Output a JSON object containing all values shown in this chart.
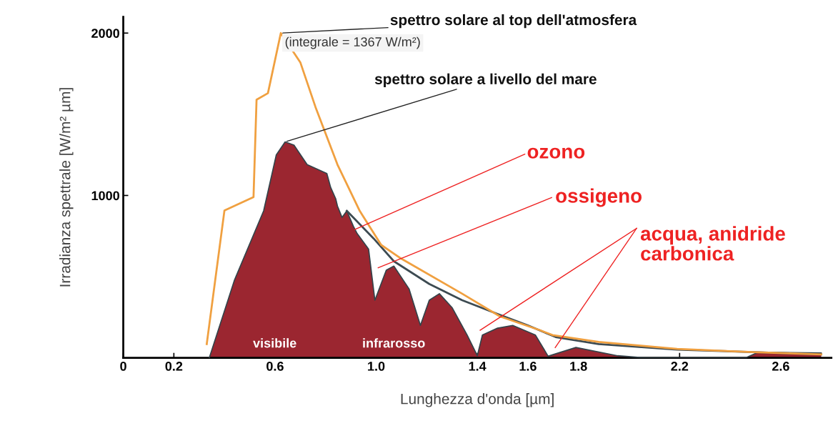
{
  "chart_data": {
    "type": "area",
    "xlabel": "Lunghezza d'onda [µm]",
    "ylabel": "Irradianza spettrale [W/m² µm]",
    "xlim": [
      0,
      2.8
    ],
    "ylim": [
      0,
      2100
    ],
    "xticks": [
      0,
      0.2,
      0.6,
      {
        "value": 1.0,
        "label": "1.0"
      },
      1.4,
      1.6,
      1.8,
      2.2,
      2.6
    ],
    "yticks": [
      1000,
      2000
    ],
    "grid": false,
    "series": [
      {
        "name": "spettro solare a livello del mare",
        "color": "#9b2630",
        "x": [
          0.34,
          0.44,
          0.555,
          0.605,
          0.64,
          0.675,
          0.727,
          0.805,
          0.82,
          0.84,
          0.847,
          0.865,
          0.884,
          0.91,
          0.925,
          0.97,
          0.995,
          1.04,
          1.07,
          1.13,
          1.175,
          1.21,
          1.25,
          1.3,
          1.36,
          1.4,
          1.42,
          1.48,
          1.54,
          1.63,
          1.68,
          1.72,
          1.79,
          1.955,
          2.06,
          2.46,
          2.51,
          2.76
        ],
        "values": [
          0,
          480,
          905,
          1250,
          1330,
          1310,
          1190,
          1135,
          1050,
          980,
          935,
          865,
          905,
          810,
          765,
          670,
          355,
          540,
          565,
          425,
          200,
          355,
          395,
          310,
          140,
          13,
          140,
          183,
          200,
          140,
          10,
          30,
          64,
          13,
          0,
          0,
          34,
          30
        ]
      },
      {
        "type": "line",
        "color": "#3d4b52",
        "x": [
          0.884,
          0.99,
          1.07,
          1.21,
          1.34,
          1.48,
          1.6,
          1.71,
          1.88,
          2.19,
          2.51,
          2.76
        ],
        "values": [
          905,
          735,
          595,
          455,
          355,
          270,
          200,
          128,
          85,
          51,
          34,
          21
        ]
      },
      {
        "name": "spettro solare al top dell'atmosfera",
        "type": "line",
        "color": "#f0a040",
        "x": [
          0.33,
          0.4,
          0.515,
          0.527,
          0.572,
          0.623,
          0.7,
          0.76,
          0.847,
          0.935,
          1.02,
          1.1,
          1.34,
          1.49,
          1.648,
          1.698,
          1.88,
          2.19,
          2.51,
          2.76
        ],
        "values": [
          85,
          907,
          990,
          1590,
          1630,
          2000,
          1820,
          1545,
          1190,
          905,
          695,
          610,
          395,
          255,
          170,
          140,
          98,
          55,
          34,
          21
        ]
      }
    ],
    "annotations": [
      "(integrale = 1367 W/m²)",
      {
        "text": "ozono",
        "x": 0.915,
        "y": 790
      },
      "ossigeno",
      "acqua, anidride\ncarbonica",
      "visibile",
      "infrarosso"
    ]
  }
}
